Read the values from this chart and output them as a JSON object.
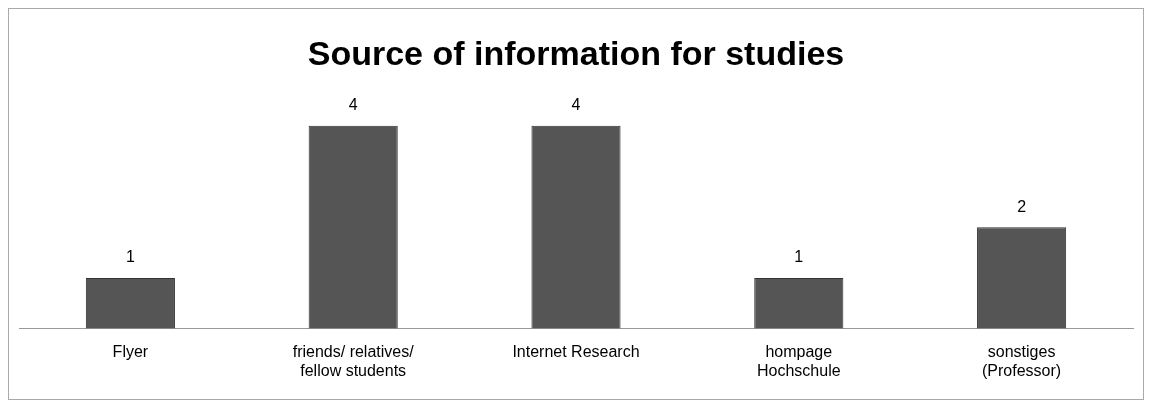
{
  "chart_data": {
    "type": "bar",
    "title": "Source of information for studies",
    "categories": [
      "Flyer",
      "friends/ relatives/ fellow students",
      "Internet Research",
      "hompage Hochschule",
      "sonstiges (Professor)"
    ],
    "values": [
      1,
      4,
      4,
      1,
      2
    ],
    "color": "#555555",
    "data_labels": true,
    "grid": false,
    "legend": false
  }
}
